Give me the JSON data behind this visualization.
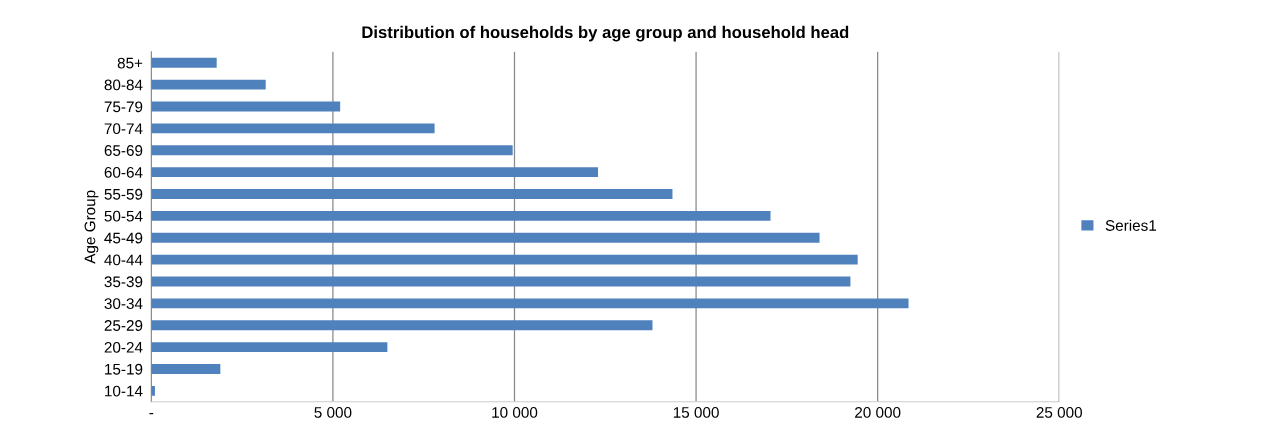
{
  "chart_data": {
    "type": "bar",
    "orientation": "horizontal",
    "title": "Distribution of households by age group and household head",
    "ylabel": "Age Group",
    "categories": [
      "85+",
      "80-84",
      "75-79",
      "70-74",
      "65-69",
      "60-64",
      "55-59",
      "50-54",
      "45-49",
      "40-44",
      "35-39",
      "30-34",
      "25-29",
      "20-24",
      "15-19",
      "10-14"
    ],
    "series": [
      {
        "name": "Series1",
        "color": "#4f81bd",
        "values": [
          1800,
          3150,
          5200,
          7800,
          9950,
          12300,
          14350,
          17050,
          18400,
          19450,
          19250,
          20850,
          13800,
          6500,
          1900,
          100
        ]
      }
    ],
    "xlim": [
      0,
      25000
    ],
    "xticks": [
      {
        "value": 0,
        "label": "-"
      },
      {
        "value": 5000,
        "label": "5 000"
      },
      {
        "value": 10000,
        "label": "10 000"
      },
      {
        "value": 15000,
        "label": "15 000"
      },
      {
        "value": 20000,
        "label": "20 000"
      },
      {
        "value": 25000,
        "label": "25 000"
      }
    ],
    "grid": "x",
    "legend": "right"
  }
}
